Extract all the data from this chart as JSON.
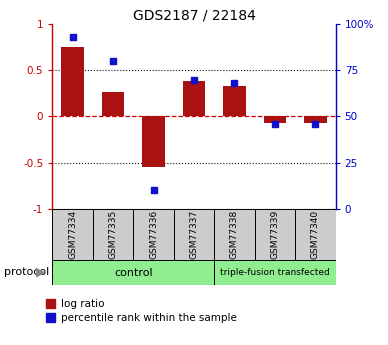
{
  "title": "GDS2187 / 22184",
  "samples": [
    "GSM77334",
    "GSM77335",
    "GSM77336",
    "GSM77337",
    "GSM77338",
    "GSM77339",
    "GSM77340"
  ],
  "log_ratio": [
    0.75,
    0.27,
    -0.55,
    0.38,
    0.33,
    -0.07,
    -0.07
  ],
  "percentile_rank": [
    93,
    80,
    10,
    70,
    68,
    46,
    46
  ],
  "control_count": 4,
  "bar_color": "#aa1111",
  "dot_color": "#1111cc",
  "zero_line_color": "#cc0000",
  "grid_line_color": "#111111",
  "ylim_left": [
    -1,
    1
  ],
  "ylim_right": [
    0,
    100
  ],
  "yticks_left": [
    -1,
    -0.5,
    0,
    0.5,
    1
  ],
  "ytick_labels_left": [
    "-1",
    "-0.5",
    "0",
    "0.5",
    "1"
  ],
  "yticks_right": [
    0,
    25,
    50,
    75,
    100
  ],
  "ytick_labels_right": [
    "0",
    "25",
    "50",
    "75",
    "100%"
  ],
  "left_axis_color": "#cc0000",
  "right_axis_color": "#0000cc",
  "bar_width": 0.55,
  "bg_color": "#ffffff",
  "label_box_color": "#cccccc",
  "group_colors": [
    "#90ee90",
    "#90ee90"
  ],
  "group_labels": [
    "control",
    "triple-fusion transfected"
  ],
  "protocol_label": "protocol"
}
